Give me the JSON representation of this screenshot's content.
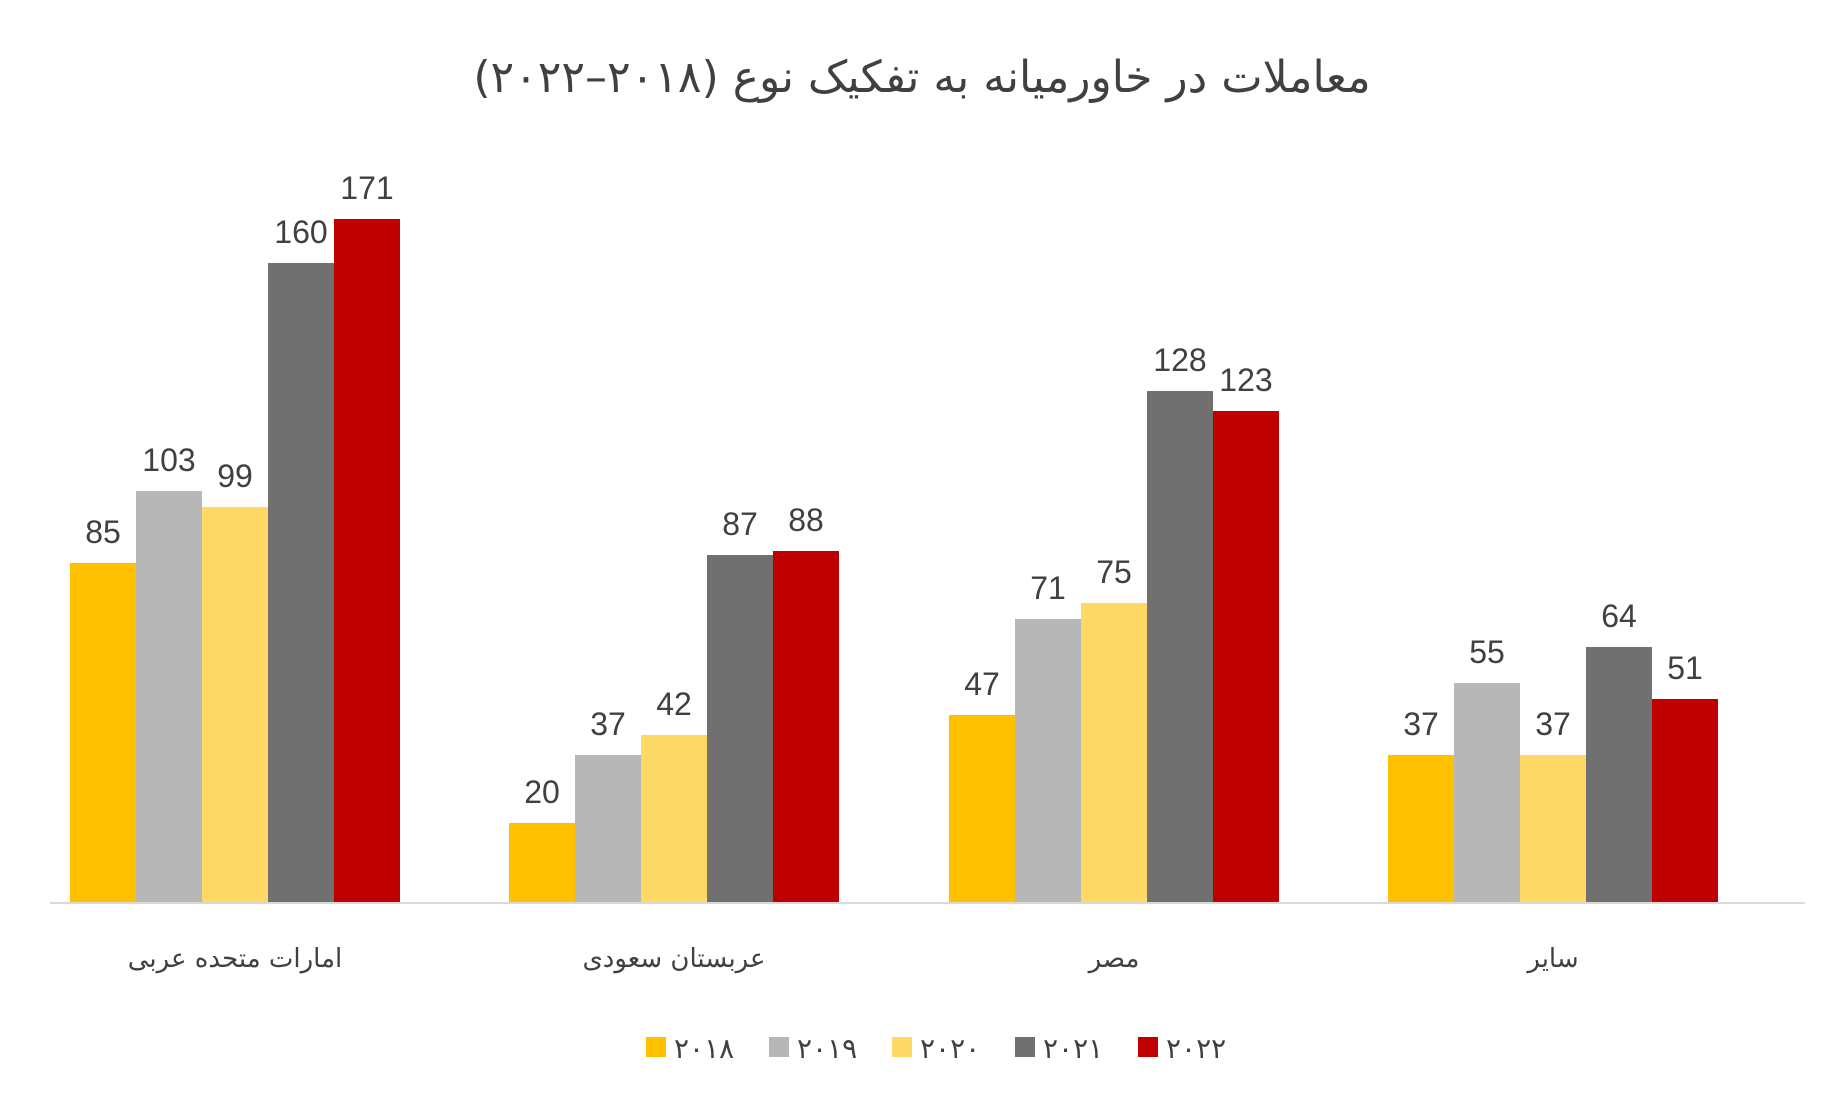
{
  "chart_data": {
    "type": "bar",
    "title": "معاملات در خاورمیانه به تفکیک نوع (۲۰۱۸–۲۰۲۲)",
    "xlabel": "",
    "ylabel": "",
    "ylim": [
      0,
      180
    ],
    "grid": false,
    "legend_position": "bottom",
    "categories": [
      "امارات متحده عربی",
      "عربستان سعودی",
      "مصر",
      "سایر"
    ],
    "series": [
      {
        "name": "۲۰۱۸",
        "color": "#FFC000",
        "values": [
          85,
          20,
          47,
          37
        ]
      },
      {
        "name": "۲۰۱۹",
        "color": "#B7B7B7",
        "values": [
          103,
          37,
          71,
          55
        ]
      },
      {
        "name": "۲۰۲۰",
        "color": "#FFD966",
        "values": [
          99,
          42,
          75,
          37
        ]
      },
      {
        "name": "۲۰۲۱",
        "color": "#707070",
        "values": [
          160,
          87,
          128,
          64
        ]
      },
      {
        "name": "۲۰۲۲",
        "color": "#C00000",
        "values": [
          171,
          88,
          123,
          51
        ]
      }
    ]
  }
}
